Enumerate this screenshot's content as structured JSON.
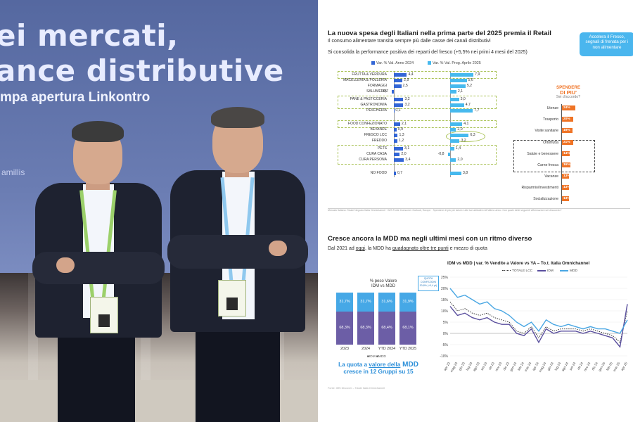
{
  "photo": {
    "screen_title_line1": "ei mercati,",
    "screen_title_line2": "ance distributive",
    "screen_subtitle": "mpa apertura Linkontro",
    "screen_name": "amillis"
  },
  "slide1": {
    "title": "La nuova spesa degli Italiani nella prima parte del 2025 premia il Retail",
    "subtitle1": "Il consumo alimentare transita sempre più dalle casse dei canali distributivi",
    "subtitle2": "Si consolida la performance positiva dei reparti del fresco (+5,5% nei primi 4 mesi del 2025)",
    "callout": [
      "Accelera il Fresco,",
      "segnali di frenata per i",
      "non alimentare"
    ],
    "legend": [
      "Var. % Val. Anno 2024",
      "Var. % Val. Prog. Aprile 2025"
    ],
    "colors": {
      "anno_2024": "#3366d6",
      "aprile_2025": "#46b9ee",
      "spend": "#ef7325"
    },
    "departments": [
      {
        "label": "FRUTTA & VERDURA",
        "v2024": "4,4",
        "v2025": "7,9"
      },
      {
        "label": "MACELLERIA & POLLERIA",
        "v2024": "2,9",
        "v2025": "5,6"
      },
      {
        "label": "FORMAGGI",
        "v2024": "2,5",
        "v2025": "5,2"
      },
      {
        "label": "SALUMERIA",
        "v2024": "-0,7",
        "v2025": "2,1"
      },
      {
        "label": "PANE & PASTICCERIA",
        "v2024": "3,2",
        "v2025": "3,0"
      },
      {
        "label": "GASTRONOMIA",
        "v2024": "3,2",
        "v2025": "4,7"
      },
      {
        "label": "PESCHERIA",
        "v2024": "0,1",
        "v2025": "7,7"
      },
      {
        "label": "FOOD CONFEZIONATO",
        "v2024": "2,1",
        "v2025": "4,1"
      },
      {
        "label": "BEVANDE",
        "v2024": "0,9",
        "v2025": "2,0"
      },
      {
        "label": "FRESCO LCC",
        "v2024": "1,3",
        "v2025": "6,3"
      },
      {
        "label": "FREDDO",
        "v2024": "1,2",
        "v2025": "3,2"
      },
      {
        "label": "PETS",
        "v2024": "3,1",
        "v2025": "1,4"
      },
      {
        "label": "CURA CASA",
        "v2024": "2,0",
        "v2025": "-0,8"
      },
      {
        "label": "CURA PERSONA",
        "v2024": "3,4",
        "v2025": "2,0"
      },
      {
        "label": "NO FOOD",
        "v2024": "0,7",
        "v2025": "3,8"
      }
    ],
    "spend_header": [
      "SPENDERE",
      "DI PIU'",
      "Sei d'accordo?"
    ],
    "spend_items": [
      {
        "label": "Utenze",
        "value": "24%"
      },
      {
        "label": "Trasporto",
        "value": "20%"
      },
      {
        "label": "Visite sanitarie",
        "value": "19%"
      },
      {
        "label": "Ortofrutta",
        "value": "21%"
      },
      {
        "label": "Salute e benessere",
        "value": "14%"
      },
      {
        "label": "Carne fresca",
        "value": "16%"
      },
      {
        "label": "Vacanze",
        "value": "13%"
      },
      {
        "label": "Risparmio/Investimenti",
        "value": "13%"
      },
      {
        "label": "Socializzazione",
        "value": "13%"
      }
    ],
    "note": "Mercato Italiano: Totale Negozio Italia Omnichannel · IMS Fonte Consumer Outlook, Europe · Spendere di più per taluni e alle tue abitudini nell'ultimo anno. Con quale delle seguenti affermazioni sei d'accordo?"
  },
  "slide2": {
    "title": "Cresce ancora la MDD ma negli ultimi mesi con un ritmo diverso",
    "subtitle_parts": [
      "Dal 2021 ad ",
      "oggi",
      ", la MDD ha ",
      "guadagnato oltre tre punti",
      " e mezzo di quota"
    ],
    "stack_title": [
      "% peso Valore",
      "IDM vs MDD"
    ],
    "stack_bars": [
      {
        "cat": "2023",
        "mdd": "31,7%",
        "idm": "68,3%"
      },
      {
        "cat": "2024",
        "mdd": "31,7%",
        "idm": "68,3%"
      },
      {
        "cat": "YTD 2024",
        "mdd": "31,6%",
        "idm": "68,4%"
      },
      {
        "cat": "YTD 2025",
        "mdd": "31,9%",
        "idm": "68,1%"
      }
    ],
    "stack_legend": "■IDM ■MDD",
    "quota_box": [
      "QUOTA",
      "CONFEZIONI",
      "30,8% (+0,4 pt)"
    ],
    "quota_note_parts": [
      "La quota a ",
      "valore della",
      " MDD",
      "cresce in 12 Gruppi su 15"
    ],
    "fonte": "Fonte: IMS Discover – Totale Italia Omnichannel",
    "line_title": "IDM vs MDD | var. % Vendite a Valore vs YA – To.t. Italia Omnichannel",
    "line_legend": [
      "TOTALE LCC",
      "IDM",
      "MDD"
    ],
    "colors": {
      "idm": "#5a4f9e",
      "mdd": "#4aa7e3",
      "lcc": "#333333"
    }
  },
  "chart_data": {
    "type": "line",
    "title": "IDM vs MDD | var. % Vendite a Valore vs YA – To.t. Italia Omnichannel",
    "x": [
      "apr-23",
      "mag-23",
      "giu-23",
      "lug-23",
      "ago-23",
      "set-23",
      "ott-23",
      "nov-23",
      "dic-23",
      "gen-24",
      "feb-24",
      "mar-24",
      "apr-24",
      "mag-24",
      "giu-24",
      "lug-24",
      "ago-24",
      "set-24",
      "ott-24",
      "nov-24",
      "dic-24",
      "gen-25",
      "feb-25",
      "mar-25",
      "apr-25"
    ],
    "ylim": [
      -10,
      25
    ],
    "yticks": [
      "25%",
      "20%",
      "15%",
      "10%",
      "5%",
      "0%",
      "-5%",
      "-10%"
    ],
    "series": [
      {
        "name": "TOTALE LCC",
        "values": [
          14,
          10,
          11,
          9,
          8,
          9,
          7,
          6,
          5,
          1,
          0,
          3,
          -2,
          3,
          1,
          2,
          2,
          2,
          1,
          2,
          1,
          0,
          -1,
          -4,
          10
        ]
      },
      {
        "name": "IDM",
        "values": [
          12,
          8,
          9,
          7,
          6,
          7,
          5,
          4,
          4,
          0,
          -1,
          2,
          -4,
          2,
          0,
          1,
          1,
          1,
          0,
          1,
          0,
          -1,
          -2,
          -6,
          13
        ]
      },
      {
        "name": "MDD",
        "values": [
          20,
          16,
          17,
          15,
          13,
          14,
          11,
          10,
          8,
          5,
          3,
          5,
          1,
          6,
          4,
          3,
          4,
          3,
          2,
          3,
          2,
          2,
          1,
          0,
          6
        ]
      }
    ]
  }
}
